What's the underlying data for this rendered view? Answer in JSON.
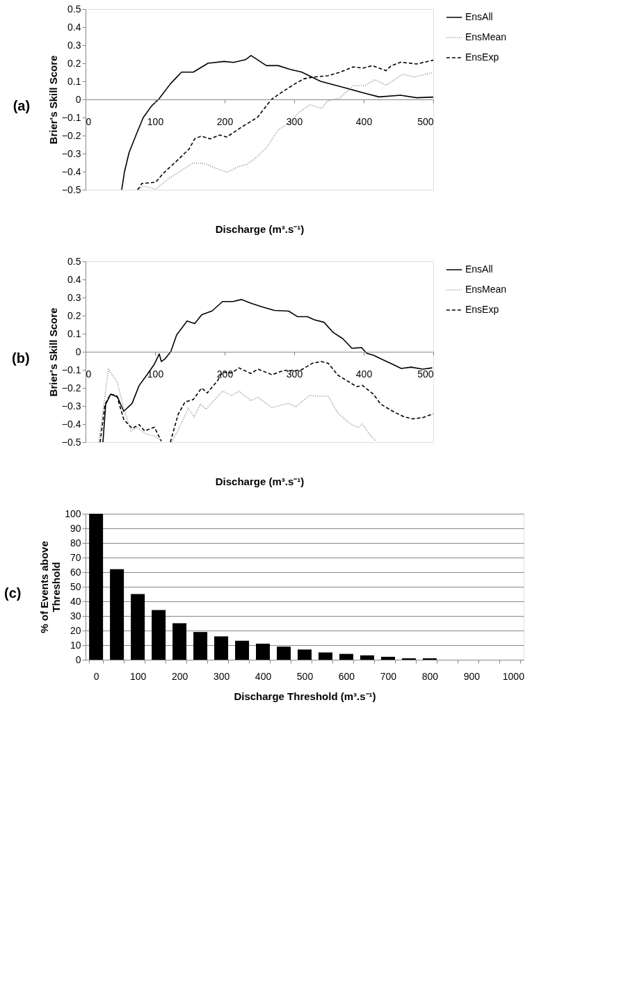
{
  "chart_data": [
    {
      "type": "line",
      "title": "(a)",
      "xlabel": "Discharge (m³.s⁻¹)",
      "ylabel": "Brier's Skill Score",
      "xlim": [
        0,
        500
      ],
      "xticks": [
        0,
        100,
        200,
        300,
        400,
        500
      ],
      "ylim": [
        -0.5,
        0.5
      ],
      "yticks": [
        -0.5,
        -0.4,
        -0.3,
        -0.2,
        -0.1,
        0,
        0.1,
        0.2,
        0.3,
        0.4,
        0.5
      ],
      "grid": false,
      "legend": "right",
      "series": [
        {
          "name": "EnsAll",
          "color": "#000000",
          "line_style": "solid",
          "x": [
            52,
            56,
            62.5,
            72.6,
            83,
            95,
            105,
            122,
            138,
            155,
            176,
            199,
            213,
            230,
            238,
            260,
            277,
            294,
            311,
            338,
            372,
            402,
            422,
            453,
            476,
            500
          ],
          "values": [
            -0.5,
            -0.4,
            -0.295,
            -0.197,
            -0.1,
            -0.036,
            0,
            0.086,
            0.151,
            0.151,
            0.2,
            0.21,
            0.205,
            0.22,
            0.243,
            0.187,
            0.187,
            0.166,
            0.151,
            0.1,
            0.065,
            0.034,
            0.014,
            0.023,
            0.009,
            0.013
          ]
        },
        {
          "name": "EnsMean",
          "color": "#888888",
          "line_style": "dotted",
          "x": [
            74,
            84,
            101,
            118,
            138,
            155,
            172,
            186,
            203,
            220,
            233,
            247,
            260,
            277,
            294,
            307,
            323,
            339.5,
            348,
            365,
            385,
            402,
            416,
            432,
            456,
            473,
            500
          ],
          "values": [
            -0.5,
            -0.48,
            -0.497,
            -0.442,
            -0.393,
            -0.351,
            -0.355,
            -0.379,
            -0.403,
            -0.372,
            -0.358,
            -0.316,
            -0.267,
            -0.169,
            -0.127,
            -0.071,
            -0.029,
            -0.05,
            -0.008,
            0.006,
            0.076,
            0.076,
            0.11,
            0.079,
            0.138,
            0.124,
            0.149
          ]
        },
        {
          "name": "EnsExp",
          "color": "#000000",
          "line_style": "dashed",
          "x": [
            75,
            81,
            101,
            111.5,
            132,
            149,
            157,
            166,
            179,
            193,
            203,
            226.5,
            247,
            267,
            280,
            301,
            314,
            328,
            348,
            365,
            385,
            399,
            412,
            432,
            439,
            453,
            476,
            500
          ],
          "values": [
            -0.5,
            -0.465,
            -0.458,
            -0.41,
            -0.337,
            -0.274,
            -0.218,
            -0.203,
            -0.218,
            -0.197,
            -0.208,
            -0.148,
            -0.1,
            -0.001,
            0.034,
            0.086,
            0.114,
            0.124,
            0.131,
            0.149,
            0.18,
            0.173,
            0.187,
            0.159,
            0.185,
            0.206,
            0.196,
            0.217
          ]
        }
      ]
    },
    {
      "type": "line",
      "title": "(b)",
      "xlabel": "Discharge (m³.s⁻¹)",
      "ylabel": "Brier's Skill Score",
      "xlim": [
        0,
        500
      ],
      "xticks": [
        0,
        100,
        200,
        300,
        400,
        500
      ],
      "ylim": [
        -0.5,
        0.5
      ],
      "yticks": [
        -0.5,
        -0.4,
        -0.3,
        -0.2,
        -0.1,
        0,
        0.1,
        0.2,
        0.3,
        0.4,
        0.5
      ],
      "grid": false,
      "legend": "right",
      "series": [
        {
          "name": "EnsAll",
          "color": "#000000",
          "line_style": "solid",
          "x": [
            25,
            29,
            36,
            46,
            55,
            67,
            77,
            89,
            99,
            106,
            109,
            114,
            122.5,
            131,
            146,
            157,
            167,
            182,
            197,
            212,
            224,
            238,
            255,
            271.5,
            292,
            305,
            319,
            329,
            343,
            356,
            370,
            383,
            397,
            404,
            414,
            427,
            441,
            454,
            468,
            485,
            498.5
          ],
          "values": [
            -0.5,
            -0.29,
            -0.235,
            -0.25,
            -0.33,
            -0.285,
            -0.187,
            -0.124,
            -0.068,
            -0.012,
            -0.054,
            -0.04,
            0,
            0.093,
            0.17,
            0.156,
            0.205,
            0.226,
            0.278,
            0.278,
            0.289,
            0.268,
            0.247,
            0.229,
            0.225,
            0.194,
            0.194,
            0.177,
            0.163,
            0.107,
            0.072,
            0.019,
            0.023,
            -0.008,
            -0.019,
            -0.043,
            -0.068,
            -0.092,
            -0.085,
            -0.096,
            -0.089
          ]
        },
        {
          "name": "EnsMean",
          "color": "#888888",
          "line_style": "dotted",
          "x": [
            19,
            33,
            46,
            55,
            65,
            73.5,
            85,
            99,
            107,
            116,
            124,
            136,
            148,
            156,
            165,
            173,
            197,
            210.5,
            220.5,
            237.5,
            248,
            268,
            292,
            302,
            322,
            333,
            349,
            363,
            380,
            392,
            398,
            409,
            418
          ],
          "values": [
            -0.5,
            -0.096,
            -0.172,
            -0.312,
            -0.438,
            -0.417,
            -0.452,
            -0.466,
            -0.487,
            null,
            -0.5,
            -0.41,
            -0.312,
            -0.361,
            -0.29,
            -0.318,
            -0.218,
            -0.242,
            -0.218,
            -0.27,
            -0.253,
            -0.309,
            -0.285,
            -0.305,
            -0.242,
            -0.246,
            -0.246,
            -0.34,
            -0.396,
            -0.42,
            -0.4,
            -0.46,
            -0.495
          ]
        },
        {
          "name": "EnsExp",
          "color": "#000000",
          "line_style": "dashed",
          "x": [
            21,
            28,
            36,
            45,
            55,
            67,
            77,
            85,
            99,
            109,
            116,
            122,
            133,
            143,
            155,
            167,
            175,
            190,
            197,
            210.5,
            220.5,
            237.5,
            248,
            268,
            285,
            309,
            326,
            339,
            349,
            363,
            390,
            398,
            414,
            424.5,
            443.5,
            458,
            470.5,
            485,
            500
          ],
          "values": [
            -0.5,
            -0.29,
            -0.235,
            -0.243,
            -0.375,
            -0.424,
            -0.403,
            -0.438,
            -0.417,
            -0.495,
            null,
            -0.5,
            -0.348,
            -0.278,
            -0.264,
            -0.2,
            -0.228,
            -0.159,
            -0.113,
            -0.117,
            -0.089,
            -0.12,
            -0.096,
            -0.127,
            -0.103,
            -0.103,
            -0.064,
            -0.054,
            -0.064,
            -0.13,
            -0.193,
            -0.186,
            -0.235,
            -0.29,
            -0.333,
            -0.36,
            -0.371,
            -0.364,
            -0.343
          ]
        }
      ]
    },
    {
      "type": "bar",
      "title": "(c)",
      "xlabel": "Discharge Threshold (m³.s⁻¹)",
      "ylabel": "% of Events above Threshold",
      "categories": [
        "0",
        null,
        "100",
        null,
        "200",
        null,
        "300",
        null,
        "400",
        null,
        "500",
        null,
        "600",
        null,
        "700",
        null,
        "800",
        null,
        "900",
        null,
        "1000"
      ],
      "values": [
        100,
        62,
        45,
        34,
        25,
        19,
        16,
        13,
        11,
        9,
        7,
        5,
        4,
        3,
        2,
        1,
        1,
        0,
        0,
        0,
        0
      ],
      "color": "#000000",
      "ylim": [
        0,
        100
      ],
      "yticks": [
        0,
        10,
        20,
        30,
        40,
        50,
        60,
        70,
        80,
        90,
        100
      ],
      "grid": "y"
    }
  ]
}
